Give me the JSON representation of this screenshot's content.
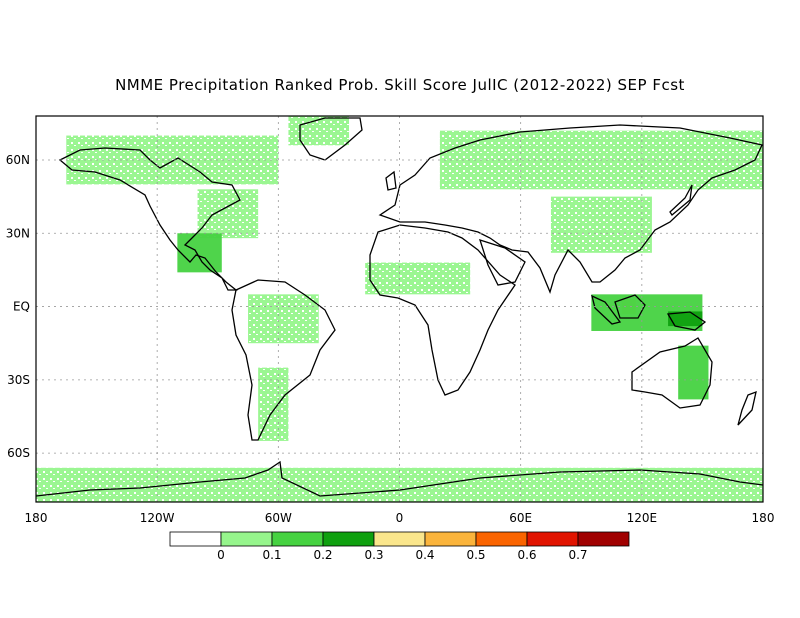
{
  "title": "NMME Precipitation Ranked Prob. Skill Score JulIC (2012-2022) SEP Fcst",
  "axes": {
    "x_ticks": [
      "180",
      "120W",
      "60W",
      "0",
      "60E",
      "120E",
      "180"
    ],
    "y_ticks": [
      "60N",
      "30N",
      "EQ",
      "30S",
      "60S"
    ],
    "lon_range": [
      -180,
      180
    ],
    "lat_range": [
      -80,
      78
    ],
    "grid": "dotted"
  },
  "colorbar": {
    "colors": [
      "#ffffff",
      "#96f58c",
      "#46d241",
      "#0fa00f",
      "#fae68c",
      "#fab43c",
      "#fa6400",
      "#e11400",
      "#a00000"
    ],
    "labels": [
      "0",
      "0.1",
      "0.2",
      "0.3",
      "0.4",
      "0.5",
      "0.6",
      "0.7"
    ]
  },
  "legend_colors": {
    "land_fill": "#ffffff",
    "skill_light": "#96f58c",
    "skill_medium": "#46d241",
    "coast": "#000000"
  },
  "chart_data": {
    "type": "map",
    "variable": "Precipitation Ranked Prob. Skill Score",
    "regions": [
      {
        "name": "North America north",
        "lon": [
          -165,
          -60
        ],
        "lat": [
          50,
          70
        ],
        "value": 0.05
      },
      {
        "name": "Eastern US",
        "lon": [
          -100,
          -70
        ],
        "lat": [
          28,
          48
        ],
        "value": 0.05
      },
      {
        "name": "Mexico",
        "lon": [
          -110,
          -88
        ],
        "lat": [
          14,
          30
        ],
        "value": 0.1
      },
      {
        "name": "Greenland",
        "lon": [
          -55,
          -25
        ],
        "lat": [
          66,
          78
        ],
        "value": 0.05
      },
      {
        "name": "Amazon",
        "lon": [
          -75,
          -40
        ],
        "lat": [
          -15,
          5
        ],
        "value": 0.08
      },
      {
        "name": "South America south",
        "lon": [
          -70,
          -55
        ],
        "lat": [
          -55,
          -25
        ],
        "value": 0.05
      },
      {
        "name": "Sahel",
        "lon": [
          -17,
          35
        ],
        "lat": [
          5,
          18
        ],
        "value": 0.08
      },
      {
        "name": "Northern Eurasia",
        "lon": [
          20,
          180
        ],
        "lat": [
          48,
          72
        ],
        "value": 0.06
      },
      {
        "name": "East Asia",
        "lon": [
          75,
          125
        ],
        "lat": [
          22,
          45
        ],
        "value": 0.05
      },
      {
        "name": "Borneo",
        "lon": [
          110,
          117
        ],
        "lat": [
          -3,
          3
        ],
        "value": 0.35
      },
      {
        "name": "Maritime Continent",
        "lon": [
          95,
          150
        ],
        "lat": [
          -10,
          5
        ],
        "value": 0.15
      },
      {
        "name": "New Guinea",
        "lon": [
          133,
          150
        ],
        "lat": [
          -8,
          -2
        ],
        "value": 0.2
      },
      {
        "name": "Eastern Australia",
        "lon": [
          138,
          153
        ],
        "lat": [
          -38,
          -16
        ],
        "value": 0.12
      },
      {
        "name": "Antarctica coast",
        "lon": [
          -180,
          180
        ],
        "lat": [
          -80,
          -66
        ],
        "value": 0.05
      }
    ]
  }
}
